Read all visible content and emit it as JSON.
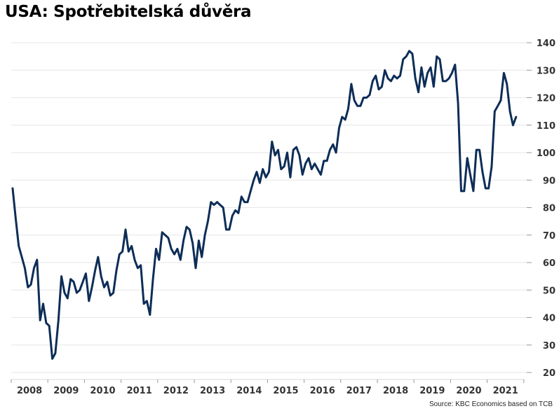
{
  "chart_data": {
    "type": "line",
    "title": "USA: Spotřebitelská důvěra",
    "source": "Source: KBC Economics based on TCB",
    "xlabel": "",
    "ylabel": "",
    "ylim": [
      20,
      140
    ],
    "yticks": [
      "20",
      "30",
      "40",
      "50",
      "60",
      "70",
      "80",
      "90",
      "100",
      "110",
      "120",
      "130",
      "140"
    ],
    "ytick_values": [
      20,
      30,
      40,
      50,
      60,
      70,
      80,
      90,
      100,
      110,
      120,
      130,
      140
    ],
    "xticks": [
      "2008",
      "2009",
      "2010",
      "2011",
      "2012",
      "2013",
      "2014",
      "2015",
      "2016",
      "2017",
      "2018",
      "2019",
      "2020",
      "2021"
    ],
    "x_start": "2008-01",
    "frequency": "monthly",
    "grid": true,
    "yaxis_side": "right",
    "line_color": "#0d2d57",
    "series": [
      {
        "name": "Spotřebitelská důvěra",
        "values": [
          87,
          76,
          66,
          62,
          58,
          51,
          52,
          58,
          61,
          39,
          45,
          38,
          37,
          25,
          27,
          39,
          55,
          49,
          47,
          54,
          53,
          49,
          50,
          53,
          56,
          46,
          51,
          57,
          62,
          55,
          51,
          53,
          48,
          49,
          57,
          63,
          64,
          72,
          64,
          66,
          61,
          58,
          59,
          45,
          46,
          41,
          54,
          65,
          61,
          71,
          70,
          69,
          65,
          63,
          65,
          61,
          68,
          73,
          72,
          67,
          58,
          68,
          62,
          70,
          75,
          82,
          81,
          82,
          81,
          80,
          72,
          72,
          77,
          79,
          78,
          84,
          82,
          82,
          86,
          90,
          93,
          89,
          94,
          91,
          93,
          104,
          99,
          101,
          94,
          95,
          100,
          91,
          101,
          102,
          99,
          92,
          96,
          98,
          94,
          96,
          94,
          92,
          97,
          97,
          101,
          103,
          100,
          109,
          113,
          112,
          116,
          125,
          119,
          117,
          117,
          120,
          120,
          121,
          126,
          128,
          123,
          124,
          130,
          127,
          126,
          128,
          127,
          128,
          134,
          135,
          137,
          136,
          127,
          122,
          131,
          124,
          129,
          131,
          124,
          135,
          134,
          126,
          126,
          127,
          129,
          132,
          118,
          86,
          86,
          98,
          92,
          86,
          101,
          101,
          93,
          87,
          87,
          95,
          115,
          117,
          119,
          129,
          125,
          115,
          110,
          113
        ]
      }
    ]
  }
}
